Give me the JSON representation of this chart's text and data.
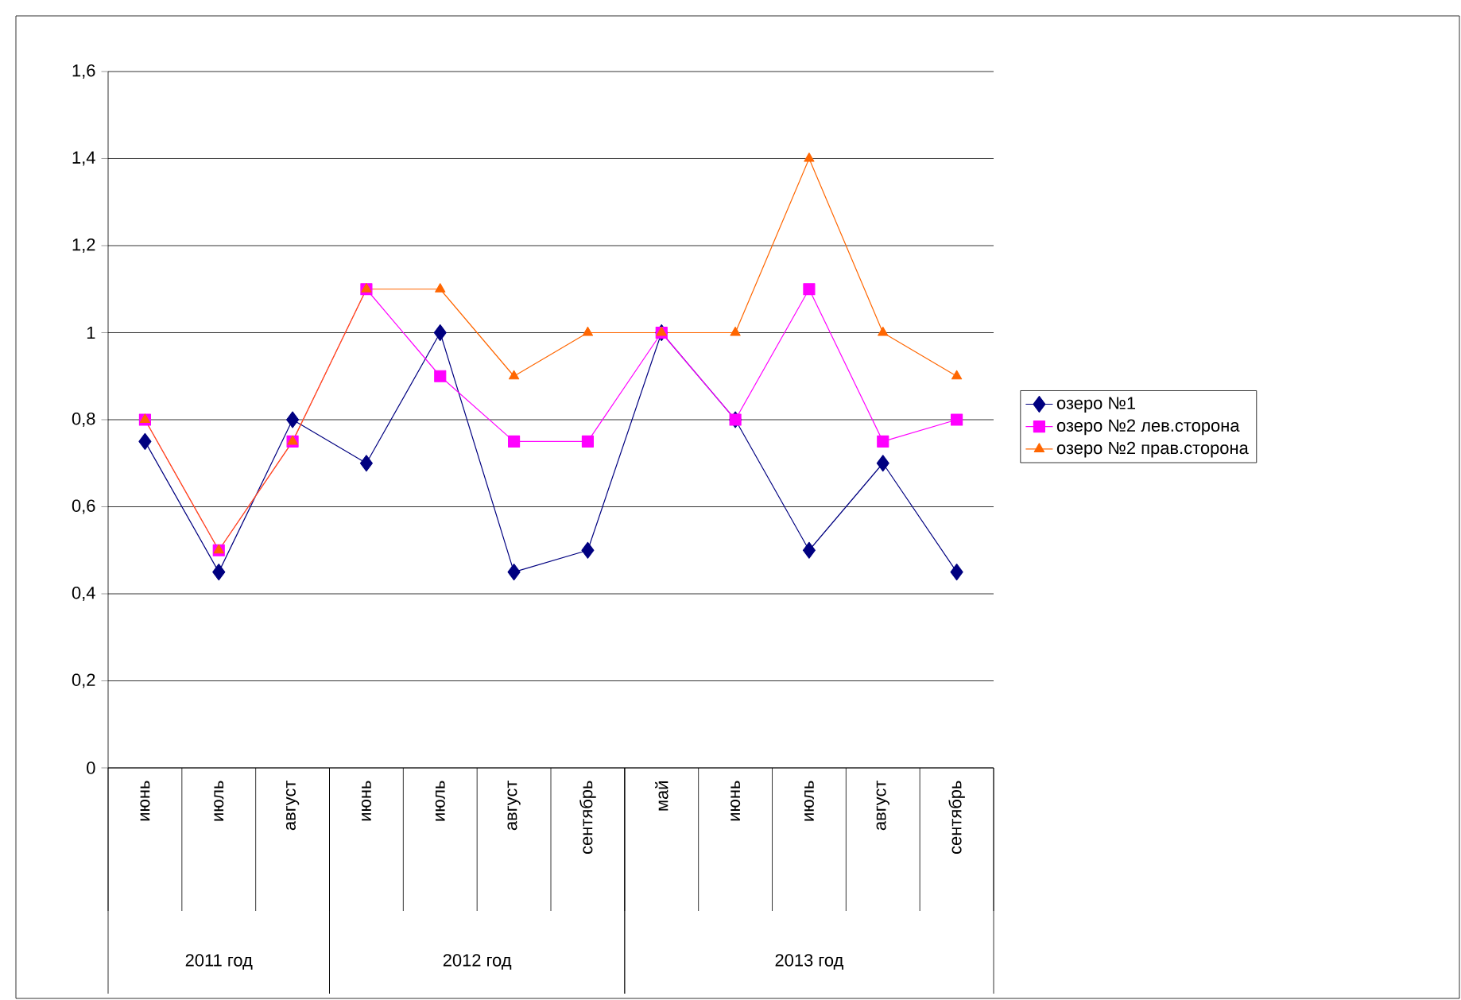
{
  "chart_data": {
    "type": "line",
    "categories": [
      "июнь",
      "июль",
      "август",
      "июнь",
      "июль",
      "август",
      "сентябрь",
      "май",
      "июнь",
      "июль",
      "август",
      "сентябрь"
    ],
    "annotations": [
      "2011 год",
      "2012 год",
      "2013 год"
    ],
    "series": [
      {
        "name": "озеро №1",
        "color": "#000080",
        "marker": "diamond",
        "values": [
          0.75,
          0.45,
          0.8,
          0.7,
          1.0,
          0.45,
          0.5,
          1.0,
          0.8,
          0.5,
          0.7,
          0.45
        ]
      },
      {
        "name": "озеро №2 лев.сторона",
        "color": "#ff00ff",
        "marker": "square",
        "values": [
          0.8,
          0.5,
          0.75,
          1.1,
          0.9,
          0.75,
          0.75,
          1.0,
          0.8,
          1.1,
          0.75,
          0.8
        ]
      },
      {
        "name": "озеро №2 прав.сторона",
        "color": "#ff6600",
        "marker": "triangle",
        "values": [
          0.8,
          0.5,
          0.75,
          1.1,
          1.1,
          0.9,
          1.0,
          1.0,
          1.0,
          1.4,
          1.0,
          0.9
        ]
      }
    ],
    "ylim": [
      0,
      1.6
    ],
    "yticks": [
      0,
      {
        "value": 0.2,
        "label": "0,2"
      },
      {
        "value": 0.4,
        "label": "0,4"
      },
      {
        "value": 0.6,
        "label": "0,6"
      },
      {
        "value": 0.8,
        "label": "0,8"
      },
      1,
      {
        "value": 1.2,
        "label": "1,2"
      },
      {
        "value": 1.4,
        "label": "1,4"
      },
      {
        "value": 1.6,
        "label": "1,6"
      }
    ],
    "grid": "y",
    "legend": "right",
    "line_style": "solid"
  }
}
